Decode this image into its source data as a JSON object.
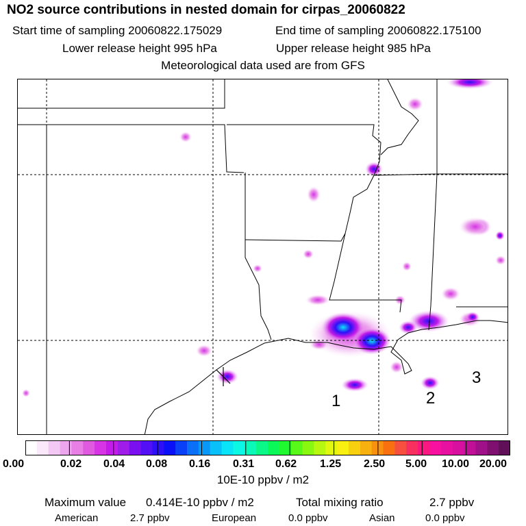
{
  "title": "NO2 source contributions in nested domain for cirpas_20060822",
  "header": {
    "start": "Start time of sampling 20060822.175029",
    "end": "End time of sampling 20060822.175100",
    "lower": "Lower release height  995 hPa",
    "upper": "Upper release height  985 hPa",
    "met": "Meteorological data used are from GFS"
  },
  "map": {
    "region_labels": [
      "1",
      "2",
      "3"
    ]
  },
  "colorbar": {
    "ticks": [
      "0.00",
      "0.02",
      "0.04",
      "0.08",
      "0.16",
      "0.31",
      "0.62",
      "1.25",
      "2.50",
      "5.00",
      "10.00",
      "20.00"
    ],
    "colors": [
      "#ffffff",
      "#fbe8fb",
      "#f4c8f4",
      "#eda5ed",
      "#e77fe7",
      "#e05ae0",
      "#d634e4",
      "#c31ce8",
      "#a01ce8",
      "#7a10f0",
      "#5410f5",
      "#2e10f8",
      "#0a10f8",
      "#0a40f8",
      "#0a70f8",
      "#0a98f8",
      "#0ac0f8",
      "#0ae4f8",
      "#0af8e4",
      "#0af8b8",
      "#0af888",
      "#0af858",
      "#20f830",
      "#58f818",
      "#88f810",
      "#b8f810",
      "#e0f810",
      "#f8f010",
      "#f8d010",
      "#f8b010",
      "#f89010",
      "#f87010",
      "#f85040",
      "#f83060",
      "#f81880",
      "#f810a0",
      "#e810a0",
      "#d810a0",
      "#c01098",
      "#a01088",
      "#801070",
      "#601058"
    ],
    "units": "10E-10 ppbv / m2"
  },
  "stats": {
    "max_label": "Maximum value",
    "max_value": "0.414E-10 ppbv / m2",
    "total_label": "Total mixing ratio",
    "total_value": "2.7 ppbv",
    "american_label": "American",
    "american_value": "2.7 ppbv",
    "european_label": "European",
    "european_value": "0.0 ppbv",
    "asian_label": "Asian",
    "asian_value": "0.0 ppbv"
  }
}
